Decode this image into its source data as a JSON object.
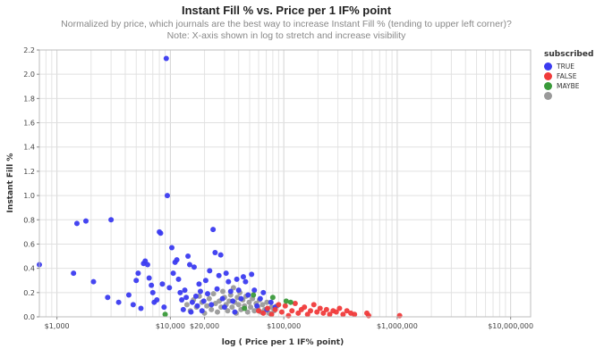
{
  "chart_data": {
    "type": "scatter",
    "title": "Instant Fill % vs. Price per 1 IF% point",
    "subtitle_lines": [
      "Normalized by price, which journals are the best way to increase Instant Fill % (tending to upper left corner)?",
      "Note: X-axis shown in log to stretch and increase visibility"
    ],
    "xlabel": "log ( Price per 1 IF% point)",
    "ylabel": "Instant Fill %",
    "x_scale": "log",
    "xlim": [
      700,
      15000000
    ],
    "ylim": [
      0,
      2.2
    ],
    "grid": true,
    "x_ticks": [
      {
        "value": 1000,
        "label": "$1,000"
      },
      {
        "value": 10000,
        "label": "$10,000"
      },
      {
        "value": 20000,
        "label": "$20,000"
      },
      {
        "value": 100000,
        "label": "$100,000"
      },
      {
        "value": 1000000,
        "label": "$1,000,000"
      },
      {
        "value": 10000000,
        "label": "$10,000,000"
      }
    ],
    "y_ticks": [
      "0.0",
      "0.2",
      "0.4",
      "0.6",
      "0.8",
      "1.0",
      "1.2",
      "1.4",
      "1.6",
      "1.8",
      "2.0",
      "2.2"
    ],
    "legend": {
      "title": "subscribed",
      "position": "right",
      "entries": [
        {
          "label": "TRUE",
          "color": "#3b3bf0"
        },
        {
          "label": "FALSE",
          "color": "#f03b3b"
        },
        {
          "label": "MAYBE",
          "color": "#3a9a3a"
        },
        {
          "label": "",
          "color": "#9a9a9a"
        }
      ]
    },
    "series": [
      {
        "name": "TRUE",
        "color": "#3b3bf0",
        "points": [
          [
            700,
            0.43
          ],
          [
            1400,
            0.36
          ],
          [
            1500,
            0.77
          ],
          [
            1800,
            0.79
          ],
          [
            2100,
            0.29
          ],
          [
            2800,
            0.16
          ],
          [
            3000,
            0.8
          ],
          [
            3500,
            0.12
          ],
          [
            4300,
            0.18
          ],
          [
            4700,
            0.1
          ],
          [
            5000,
            0.3
          ],
          [
            5200,
            0.36
          ],
          [
            5500,
            0.07
          ],
          [
            5800,
            0.44
          ],
          [
            6000,
            0.46
          ],
          [
            6300,
            0.43
          ],
          [
            6500,
            0.32
          ],
          [
            6800,
            0.26
          ],
          [
            7000,
            0.2
          ],
          [
            7200,
            0.12
          ],
          [
            7600,
            0.14
          ],
          [
            8000,
            0.7
          ],
          [
            8200,
            0.69
          ],
          [
            8500,
            0.27
          ],
          [
            8800,
            0.08
          ],
          [
            9200,
            2.13
          ],
          [
            9400,
            1.0
          ],
          [
            9800,
            0.24
          ],
          [
            10300,
            0.57
          ],
          [
            10600,
            0.36
          ],
          [
            11000,
            0.45
          ],
          [
            11400,
            0.47
          ],
          [
            11800,
            0.31
          ],
          [
            12200,
            0.2
          ],
          [
            12600,
            0.14
          ],
          [
            13000,
            0.06
          ],
          [
            13400,
            0.22
          ],
          [
            13800,
            0.16
          ],
          [
            14300,
            0.5
          ],
          [
            14800,
            0.43
          ],
          [
            15200,
            0.04
          ],
          [
            15600,
            0.12
          ],
          [
            16200,
            0.41
          ],
          [
            16800,
            0.17
          ],
          [
            17300,
            0.09
          ],
          [
            17900,
            0.27
          ],
          [
            18400,
            0.21
          ],
          [
            19000,
            0.05
          ],
          [
            19700,
            0.13
          ],
          [
            20500,
            0.3
          ],
          [
            21300,
            0.19
          ],
          [
            22200,
            0.38
          ],
          [
            23000,
            0.1
          ],
          [
            23800,
            0.72
          ],
          [
            24800,
            0.53
          ],
          [
            25800,
            0.23
          ],
          [
            26800,
            0.34
          ],
          [
            27800,
            0.51
          ],
          [
            28800,
            0.15
          ],
          [
            30000,
            0.08
          ],
          [
            31000,
            0.36
          ],
          [
            32500,
            0.29
          ],
          [
            34000,
            0.21
          ],
          [
            35500,
            0.13
          ],
          [
            37000,
            0.04
          ],
          [
            38500,
            0.31
          ],
          [
            40000,
            0.22
          ],
          [
            42000,
            0.15
          ],
          [
            44000,
            0.33
          ],
          [
            46000,
            0.29
          ],
          [
            48500,
            0.18
          ],
          [
            52000,
            0.35
          ],
          [
            55000,
            0.22
          ],
          [
            58000,
            0.09
          ],
          [
            62000,
            0.15
          ],
          [
            66000,
            0.2
          ],
          [
            71000,
            0.06
          ],
          [
            77000,
            0.12
          ],
          [
            84000,
            0.08
          ]
        ]
      },
      {
        "name": "FALSE",
        "color": "#f03b3b",
        "points": [
          [
            60000,
            0.05
          ],
          [
            66000,
            0.03
          ],
          [
            72000,
            0.07
          ],
          [
            78000,
            0.02
          ],
          [
            84000,
            0.06
          ],
          [
            90000,
            0.1
          ],
          [
            96000,
            0.04
          ],
          [
            103000,
            0.09
          ],
          [
            110000,
            0.01
          ],
          [
            118000,
            0.05
          ],
          [
            126000,
            0.11
          ],
          [
            134000,
            0.03
          ],
          [
            143000,
            0.06
          ],
          [
            152000,
            0.08
          ],
          [
            162000,
            0.02
          ],
          [
            172000,
            0.05
          ],
          [
            184000,
            0.1
          ],
          [
            196000,
            0.04
          ],
          [
            209000,
            0.07
          ],
          [
            223000,
            0.03
          ],
          [
            238000,
            0.06
          ],
          [
            254000,
            0.02
          ],
          [
            272000,
            0.05
          ],
          [
            290000,
            0.04
          ],
          [
            310000,
            0.07
          ],
          [
            333000,
            0.02
          ],
          [
            360000,
            0.05
          ],
          [
            390000,
            0.03
          ],
          [
            420000,
            0.02
          ],
          [
            540000,
            0.03
          ],
          [
            560000,
            0.01
          ],
          [
            1050000,
            0.01
          ]
        ]
      },
      {
        "name": "MAYBE",
        "color": "#3a9a3a",
        "points": [
          [
            9000,
            0.02
          ],
          [
            54000,
            0.18
          ],
          [
            80000,
            0.16
          ],
          [
            105000,
            0.13
          ],
          [
            115000,
            0.12
          ],
          [
            45000,
            0.07
          ]
        ]
      },
      {
        "name": "",
        "color": "#9a9a9a",
        "points": [
          [
            14000,
            0.1
          ],
          [
            15000,
            0.05
          ],
          [
            16000,
            0.14
          ],
          [
            17000,
            0.08
          ],
          [
            18000,
            0.17
          ],
          [
            19000,
            0.12
          ],
          [
            20000,
            0.03
          ],
          [
            21000,
            0.09
          ],
          [
            22000,
            0.15
          ],
          [
            23000,
            0.06
          ],
          [
            24000,
            0.19
          ],
          [
            25000,
            0.11
          ],
          [
            26000,
            0.04
          ],
          [
            27000,
            0.13
          ],
          [
            28000,
            0.08
          ],
          [
            29000,
            0.21
          ],
          [
            30000,
            0.16
          ],
          [
            31000,
            0.1
          ],
          [
            32000,
            0.05
          ],
          [
            33000,
            0.13
          ],
          [
            34000,
            0.18
          ],
          [
            35000,
            0.08
          ],
          [
            36000,
            0.24
          ],
          [
            37000,
            0.12
          ],
          [
            38000,
            0.03
          ],
          [
            39000,
            0.16
          ],
          [
            40000,
            0.1
          ],
          [
            41000,
            0.2
          ],
          [
            42000,
            0.06
          ],
          [
            43500,
            0.14
          ],
          [
            45000,
            0.09
          ],
          [
            46500,
            0.17
          ],
          [
            48000,
            0.04
          ],
          [
            49500,
            0.12
          ],
          [
            51000,
            0.08
          ],
          [
            53000,
            0.15
          ],
          [
            55000,
            0.05
          ],
          [
            57000,
            0.11
          ],
          [
            59000,
            0.08
          ],
          [
            61000,
            0.14
          ],
          [
            63000,
            0.04
          ],
          [
            65000,
            0.1
          ],
          [
            68000,
            0.06
          ],
          [
            71000,
            0.12
          ],
          [
            74000,
            0.03
          ],
          [
            78000,
            0.08
          ],
          [
            82000,
            0.05
          ],
          [
            87000,
            0.09
          ]
        ]
      }
    ]
  }
}
